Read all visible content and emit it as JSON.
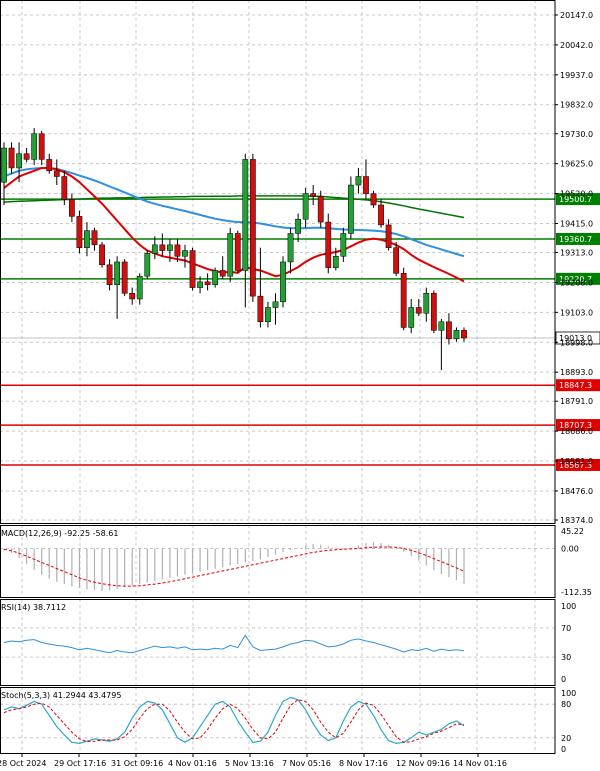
{
  "chart_data": {
    "type": "candlestick",
    "instrument_panel": {
      "y_ticks": [
        "20147.0",
        "20042.0",
        "19937.0",
        "19832.0",
        "19730.0",
        "19625.0",
        "19520.0",
        "19415.0",
        "19313.0",
        "19208.0",
        "19103.0",
        "18998.0",
        "18893.0",
        "18791.0",
        "18686.0",
        "18581.0",
        "18476.0",
        "18374.0"
      ],
      "ylim": [
        18374,
        20147
      ],
      "current_price": "19013.0",
      "levels": [
        {
          "label": "19500.7",
          "value": 19500.7,
          "color": "#008000"
        },
        {
          "label": "19360.7",
          "value": 19360.7,
          "color": "#008000"
        },
        {
          "label": "19220.7",
          "value": 19220.7,
          "color": "#008000"
        },
        {
          "label": "18847.3",
          "value": 18847.3,
          "color": "#e00000"
        },
        {
          "label": "18707.3",
          "value": 18707.3,
          "color": "#e00000"
        },
        {
          "label": "18567.3",
          "value": 18567.3,
          "color": "#e00000"
        }
      ],
      "candles": [
        {
          "o": 19560,
          "h": 19700,
          "l": 19480,
          "c": 19680
        },
        {
          "o": 19680,
          "h": 19700,
          "l": 19590,
          "c": 19610
        },
        {
          "o": 19610,
          "h": 19700,
          "l": 19560,
          "c": 19660
        },
        {
          "o": 19660,
          "h": 19680,
          "l": 19630,
          "c": 19640
        },
        {
          "o": 19640,
          "h": 19750,
          "l": 19620,
          "c": 19730
        },
        {
          "o": 19730,
          "h": 19740,
          "l": 19620,
          "c": 19640
        },
        {
          "o": 19640,
          "h": 19660,
          "l": 19590,
          "c": 19600
        },
        {
          "o": 19600,
          "h": 19640,
          "l": 19550,
          "c": 19580
        },
        {
          "o": 19580,
          "h": 19600,
          "l": 19480,
          "c": 19500
        },
        {
          "o": 19500,
          "h": 19520,
          "l": 19420,
          "c": 19440
        },
        {
          "o": 19440,
          "h": 19460,
          "l": 19310,
          "c": 19330
        },
        {
          "o": 19330,
          "h": 19420,
          "l": 19300,
          "c": 19390
        },
        {
          "o": 19390,
          "h": 19400,
          "l": 19320,
          "c": 19340
        },
        {
          "o": 19340,
          "h": 19350,
          "l": 19260,
          "c": 19270
        },
        {
          "o": 19270,
          "h": 19290,
          "l": 19180,
          "c": 19200
        },
        {
          "o": 19200,
          "h": 19300,
          "l": 19080,
          "c": 19280
        },
        {
          "o": 19280,
          "h": 19290,
          "l": 19160,
          "c": 19170
        },
        {
          "o": 19170,
          "h": 19190,
          "l": 19130,
          "c": 19150
        },
        {
          "o": 19150,
          "h": 19240,
          "l": 19130,
          "c": 19230
        },
        {
          "o": 19230,
          "h": 19320,
          "l": 19220,
          "c": 19310
        },
        {
          "o": 19310,
          "h": 19370,
          "l": 19290,
          "c": 19340
        },
        {
          "o": 19340,
          "h": 19380,
          "l": 19300,
          "c": 19320
        },
        {
          "o": 19320,
          "h": 19360,
          "l": 19280,
          "c": 19340
        },
        {
          "o": 19340,
          "h": 19360,
          "l": 19280,
          "c": 19300
        },
        {
          "o": 19300,
          "h": 19340,
          "l": 19260,
          "c": 19320
        },
        {
          "o": 19320,
          "h": 19330,
          "l": 19180,
          "c": 19190
        },
        {
          "o": 19190,
          "h": 19230,
          "l": 19170,
          "c": 19210
        },
        {
          "o": 19210,
          "h": 19240,
          "l": 19180,
          "c": 19200
        },
        {
          "o": 19200,
          "h": 19260,
          "l": 19190,
          "c": 19250
        },
        {
          "o": 19250,
          "h": 19300,
          "l": 19220,
          "c": 19230
        },
        {
          "o": 19230,
          "h": 19400,
          "l": 19210,
          "c": 19380
        },
        {
          "o": 19380,
          "h": 19390,
          "l": 19240,
          "c": 19250
        },
        {
          "o": 19250,
          "h": 19660,
          "l": 19120,
          "c": 19640
        },
        {
          "o": 19640,
          "h": 19660,
          "l": 19140,
          "c": 19160
        },
        {
          "o": 19160,
          "h": 19330,
          "l": 19050,
          "c": 19070
        },
        {
          "o": 19070,
          "h": 19140,
          "l": 19050,
          "c": 19120
        },
        {
          "o": 19120,
          "h": 19170,
          "l": 19060,
          "c": 19140
        },
        {
          "o": 19140,
          "h": 19300,
          "l": 19120,
          "c": 19280
        },
        {
          "o": 19280,
          "h": 19400,
          "l": 19240,
          "c": 19380
        },
        {
          "o": 19380,
          "h": 19450,
          "l": 19350,
          "c": 19430
        },
        {
          "o": 19430,
          "h": 19540,
          "l": 19400,
          "c": 19520
        },
        {
          "o": 19520,
          "h": 19550,
          "l": 19480,
          "c": 19510
        },
        {
          "o": 19510,
          "h": 19530,
          "l": 19400,
          "c": 19420
        },
        {
          "o": 19420,
          "h": 19450,
          "l": 19240,
          "c": 19260
        },
        {
          "o": 19260,
          "h": 19330,
          "l": 19250,
          "c": 19300
        },
        {
          "o": 19300,
          "h": 19400,
          "l": 19280,
          "c": 19380
        },
        {
          "o": 19380,
          "h": 19580,
          "l": 19360,
          "c": 19550
        },
        {
          "o": 19550,
          "h": 19610,
          "l": 19520,
          "c": 19580
        },
        {
          "o": 19580,
          "h": 19640,
          "l": 19500,
          "c": 19520
        },
        {
          "o": 19520,
          "h": 19530,
          "l": 19470,
          "c": 19480
        },
        {
          "o": 19480,
          "h": 19500,
          "l": 19400,
          "c": 19410
        },
        {
          "o": 19410,
          "h": 19430,
          "l": 19320,
          "c": 19330
        },
        {
          "o": 19330,
          "h": 19350,
          "l": 19230,
          "c": 19240
        },
        {
          "o": 19240,
          "h": 19260,
          "l": 19040,
          "c": 19050
        },
        {
          "o": 19050,
          "h": 19150,
          "l": 19030,
          "c": 19120
        },
        {
          "o": 19120,
          "h": 19150,
          "l": 19090,
          "c": 19100
        },
        {
          "o": 19100,
          "h": 19190,
          "l": 19070,
          "c": 19170
        },
        {
          "o": 19170,
          "h": 19180,
          "l": 19030,
          "c": 19040
        },
        {
          "o": 19040,
          "h": 19080,
          "l": 18900,
          "c": 19070
        },
        {
          "o": 19070,
          "h": 19100,
          "l": 18990,
          "c": 19010
        },
        {
          "o": 19010,
          "h": 19050,
          "l": 19000,
          "c": 19040
        },
        {
          "o": 19040,
          "h": 19050,
          "l": 19000,
          "c": 19013
        }
      ],
      "ma_fast": [
        19540,
        19560,
        19580,
        19590,
        19600,
        19610,
        19610,
        19605,
        19595,
        19580,
        19560,
        19535,
        19510,
        19485,
        19455,
        19425,
        19395,
        19365,
        19340,
        19320,
        19310,
        19300,
        19295,
        19290,
        19285,
        19275,
        19265,
        19255,
        19248,
        19243,
        19245,
        19242,
        19262,
        19255,
        19250,
        19240,
        19230,
        19235,
        19248,
        19262,
        19280,
        19295,
        19305,
        19310,
        19315,
        19322,
        19335,
        19348,
        19358,
        19362,
        19358,
        19350,
        19340,
        19325,
        19305,
        19288,
        19275,
        19262,
        19250,
        19238,
        19225,
        19212
      ],
      "ma_slow": [
        19580,
        19590,
        19600,
        19605,
        19608,
        19610,
        19610,
        19607,
        19600,
        19592,
        19583,
        19575,
        19566,
        19556,
        19545,
        19535,
        19524,
        19513,
        19502,
        19492,
        19484,
        19477,
        19471,
        19465,
        19459,
        19452,
        19445,
        19438,
        19432,
        19427,
        19423,
        19420,
        19420,
        19418,
        19415,
        19410,
        19405,
        19401,
        19399,
        19398,
        19399,
        19400,
        19400,
        19398,
        19396,
        19394,
        19393,
        19392,
        19391,
        19390,
        19388,
        19384,
        19378,
        19370,
        19360,
        19350,
        19340,
        19332,
        19324,
        19316,
        19308,
        19300
      ],
      "ma_long": [
        19490,
        19492,
        19493,
        19494,
        19495,
        19496,
        19497,
        19498,
        19499,
        19500,
        19501,
        19502,
        19503,
        19504,
        19504,
        19505,
        19505,
        19506,
        19506,
        19507,
        19507,
        19508,
        19508,
        19509,
        19509,
        19510,
        19510,
        19510,
        19511,
        19511,
        19511,
        19512,
        19512,
        19512,
        19512,
        19512,
        19512,
        19512,
        19512,
        19512,
        19512,
        19511,
        19510,
        19508,
        19506,
        19504,
        19502,
        19500,
        19498,
        19495,
        19491,
        19487,
        19482,
        19477,
        19471,
        19466,
        19461,
        19456,
        19451,
        19446,
        19441,
        19436
      ]
    },
    "macd_panel": {
      "label": "MACD(12,26,9) -92.25 -58.61",
      "y_ticks": [
        "45.22",
        "0.00",
        "-112.35"
      ],
      "ylim": [
        -112.35,
        45.22
      ],
      "histogram": [
        -5,
        -12,
        -25,
        -40,
        -55,
        -68,
        -78,
        -86,
        -92,
        -98,
        -102,
        -106,
        -108,
        -110,
        -108,
        -104,
        -100,
        -96,
        -92,
        -88,
        -84,
        -80,
        -76,
        -72,
        -68,
        -64,
        -60,
        -56,
        -52,
        -48,
        -44,
        -40,
        -36,
        -32,
        -28,
        -22,
        -16,
        -10,
        -4,
        2,
        8,
        12,
        10,
        6,
        2,
        -2,
        2,
        8,
        14,
        16,
        14,
        10,
        4,
        -8,
        -20,
        -32,
        -44,
        -56,
        -66,
        -74,
        -82,
        -92.25
      ],
      "signal": [
        -2,
        -6,
        -12,
        -20,
        -28,
        -36,
        -44,
        -52,
        -60,
        -68,
        -76,
        -82,
        -87,
        -91,
        -94,
        -96,
        -97,
        -97,
        -96,
        -94,
        -92,
        -89,
        -86,
        -82,
        -78,
        -74,
        -70,
        -66,
        -62,
        -58,
        -54,
        -50,
        -46,
        -42,
        -38,
        -34,
        -30,
        -26,
        -22,
        -18,
        -14,
        -10,
        -7,
        -5,
        -3,
        -2,
        -1,
        0,
        2,
        3,
        4,
        4,
        3,
        0,
        -5,
        -11,
        -18,
        -26,
        -34,
        -42,
        -50,
        -58.61
      ]
    },
    "rsi_panel": {
      "label": "RSI(14) 38.7112",
      "y_ticks": [
        "100",
        "70",
        "30",
        "0"
      ],
      "ylim": [
        0,
        100
      ],
      "values": [
        50,
        52,
        51,
        53,
        54,
        50,
        48,
        46,
        45,
        43,
        40,
        42,
        40,
        38,
        36,
        39,
        37,
        36,
        39,
        42,
        45,
        43,
        44,
        42,
        44,
        40,
        41,
        40,
        42,
        41,
        46,
        43,
        60,
        44,
        39,
        40,
        41,
        44,
        48,
        50,
        53,
        52,
        48,
        44,
        45,
        48,
        53,
        55,
        52,
        50,
        47,
        44,
        41,
        37,
        40,
        39,
        42,
        38,
        41,
        39,
        40,
        38.71
      ]
    },
    "stoch_panel": {
      "label": "Stoch(5,3,3) 41.2944 43.4795",
      "y_ticks": [
        "100",
        "80",
        "20",
        "0"
      ],
      "ylim": [
        0,
        100
      ],
      "k": [
        70,
        75,
        72,
        78,
        85,
        80,
        60,
        40,
        25,
        12,
        10,
        14,
        18,
        16,
        14,
        18,
        30,
        55,
        75,
        85,
        82,
        70,
        45,
        20,
        12,
        20,
        40,
        60,
        80,
        85,
        75,
        50,
        30,
        12,
        14,
        30,
        60,
        85,
        92,
        88,
        70,
        45,
        25,
        15,
        20,
        50,
        75,
        85,
        80,
        60,
        35,
        15,
        10,
        12,
        20,
        30,
        25,
        30,
        35,
        45,
        50,
        41.29
      ],
      "d": [
        65,
        70,
        72,
        75,
        80,
        82,
        75,
        60,
        45,
        30,
        18,
        13,
        14,
        16,
        16,
        16,
        22,
        35,
        55,
        72,
        80,
        80,
        68,
        48,
        30,
        18,
        20,
        35,
        55,
        72,
        80,
        72,
        55,
        35,
        20,
        18,
        30,
        55,
        78,
        88,
        85,
        70,
        48,
        30,
        20,
        28,
        48,
        70,
        82,
        78,
        62,
        42,
        22,
        12,
        13,
        18,
        22,
        28,
        32,
        38,
        45,
        43.48
      ]
    },
    "x_ticks": [
      "28 Oct 2024",
      "29 Oct 17:16",
      "31 Oct 09:16",
      "4 Nov 01:16",
      "5 Nov 13:16",
      "7 Nov 05:16",
      "8 Nov 17:16",
      "12 Nov 09:16",
      "14 Nov 01:16"
    ],
    "colors": {
      "bull": "#22a033",
      "bear": "#d01010",
      "ma_fast": "#e00000",
      "ma_slow": "#2f8fe0",
      "ma_long": "#007000",
      "grid": "#c8c8c8",
      "macd_hist": "#b0b0b0",
      "macd_signal": "#e00000",
      "rsi": "#2f8fe0",
      "stoch_k": "#2aa8c8",
      "stoch_d": "#e00000"
    },
    "grid": true
  }
}
